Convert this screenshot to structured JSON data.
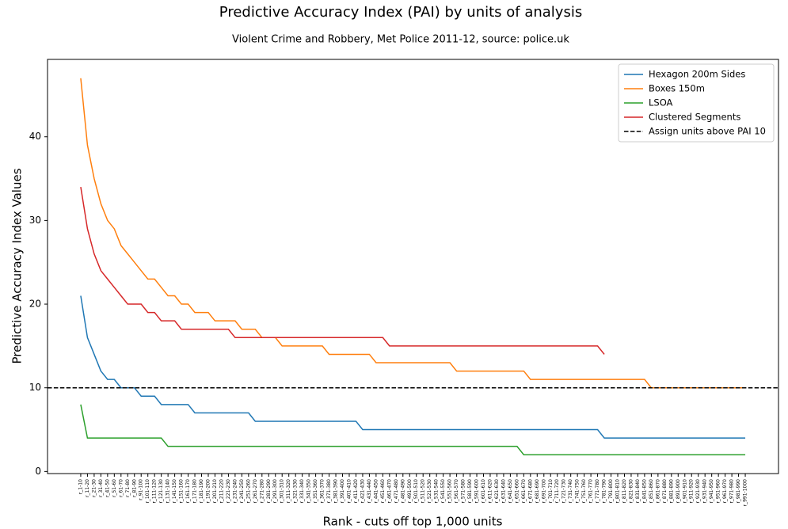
{
  "chart_data": {
    "type": "line",
    "title": "Predictive Accuracy Index (PAI) by units of analysis",
    "subtitle": "Violent Crime and Robbery, Met Police 2011-12, source: police.uk",
    "xlabel": "Rank - cuts off top 1,000 units",
    "ylabel": "Predictive Accuracy Index Values",
    "categories": [
      "r_1-10",
      "r_11-20",
      "r_21-30",
      "r_31-40",
      "r_41-50",
      "r_51-60",
      "r_61-70",
      "r_71-80",
      "r_81-90",
      "r_91-100",
      "r_101-110",
      "r_111-120",
      "r_121-130",
      "r_131-140",
      "r_141-150",
      "r_151-160",
      "r_161-170",
      "r_171-180",
      "r_181-190",
      "r_191-200",
      "r_201-210",
      "r_211-220",
      "r_221-230",
      "r_231-240",
      "r_241-250",
      "r_251-260",
      "r_261-270",
      "r_271-280",
      "r_281-290",
      "r_291-300",
      "r_301-310",
      "r_311-320",
      "r_321-330",
      "r_331-340",
      "r_341-350",
      "r_351-360",
      "r_361-370",
      "r_371-380",
      "r_381-390",
      "r_391-400",
      "r_401-410",
      "r_411-420",
      "r_421-430",
      "r_431-440",
      "r_441-450",
      "r_451-460",
      "r_461-470",
      "r_471-480",
      "r_481-490",
      "r_491-500",
      "r_501-510",
      "r_511-520",
      "r_521-530",
      "r_531-540",
      "r_541-550",
      "r_551-560",
      "r_561-570",
      "r_571-580",
      "r_581-590",
      "r_591-600",
      "r_601-610",
      "r_611-620",
      "r_621-630",
      "r_631-640",
      "r_641-650",
      "r_651-660",
      "r_661-670",
      "r_671-680",
      "r_681-690",
      "r_691-700",
      "r_701-710",
      "r_711-720",
      "r_721-730",
      "r_731-740",
      "r_741-750",
      "r_751-760",
      "r_761-770",
      "r_771-780",
      "r_781-790",
      "r_791-800",
      "r_801-810",
      "r_811-820",
      "r_821-830",
      "r_831-840",
      "r_841-850",
      "r_851-860",
      "r_861-870",
      "r_871-880",
      "r_881-890",
      "r_891-900",
      "r_901-910",
      "r_911-920",
      "r_921-930",
      "r_931-940",
      "r_941-950",
      "r_951-960",
      "r_961-970",
      "r_971-980",
      "r_981-990",
      "r_991-1000"
    ],
    "series": [
      {
        "name": "Hexagon 200m Sides",
        "color": "#1f77b4",
        "values": [
          21,
          16,
          14,
          12,
          11,
          11,
          10,
          10,
          10,
          9,
          9,
          9,
          8,
          8,
          8,
          8,
          8,
          7,
          7,
          7,
          7,
          7,
          7,
          7,
          7,
          7,
          6,
          6,
          6,
          6,
          6,
          6,
          6,
          6,
          6,
          6,
          6,
          6,
          6,
          6,
          6,
          6,
          5,
          5,
          5,
          5,
          5,
          5,
          5,
          5,
          5,
          5,
          5,
          5,
          5,
          5,
          5,
          5,
          5,
          5,
          5,
          5,
          5,
          5,
          5,
          5,
          5,
          5,
          5,
          5,
          5,
          5,
          5,
          5,
          5,
          5,
          5,
          5,
          4,
          4,
          4,
          4,
          4,
          4,
          4,
          4,
          4,
          4,
          4,
          4,
          4,
          4,
          4,
          4,
          4,
          4,
          4,
          4,
          4,
          4
        ]
      },
      {
        "name": "Boxes 150m",
        "color": "#ff7f0e",
        "values": [
          47,
          39,
          35,
          32,
          30,
          29,
          27,
          26,
          25,
          24,
          23,
          23,
          22,
          21,
          21,
          20,
          20,
          19,
          19,
          19,
          18,
          18,
          18,
          18,
          17,
          17,
          17,
          16,
          16,
          16,
          15,
          15,
          15,
          15,
          15,
          15,
          15,
          14,
          14,
          14,
          14,
          14,
          14,
          14,
          13,
          13,
          13,
          13,
          13,
          13,
          13,
          13,
          13,
          13,
          13,
          13,
          12,
          12,
          12,
          12,
          12,
          12,
          12,
          12,
          12,
          12,
          12,
          11,
          11,
          11,
          11,
          11,
          11,
          11,
          11,
          11,
          11,
          11,
          11,
          11,
          11,
          11,
          11,
          11,
          11,
          10,
          10,
          10,
          10,
          10,
          10,
          10,
          10,
          10,
          10,
          10,
          10,
          10,
          10,
          10
        ]
      },
      {
        "name": "LSOA",
        "color": "#2ca02c",
        "values": [
          8,
          4,
          4,
          4,
          4,
          4,
          4,
          4,
          4,
          4,
          4,
          4,
          4,
          3,
          3,
          3,
          3,
          3,
          3,
          3,
          3,
          3,
          3,
          3,
          3,
          3,
          3,
          3,
          3,
          3,
          3,
          3,
          3,
          3,
          3,
          3,
          3,
          3,
          3,
          3,
          3,
          3,
          3,
          3,
          3,
          3,
          3,
          3,
          3,
          3,
          3,
          3,
          3,
          3,
          3,
          3,
          3,
          3,
          3,
          3,
          3,
          3,
          3,
          3,
          3,
          3,
          2,
          2,
          2,
          2,
          2,
          2,
          2,
          2,
          2,
          2,
          2,
          2,
          2,
          2,
          2,
          2,
          2,
          2,
          2,
          2,
          2,
          2,
          2,
          2,
          2,
          2,
          2,
          2,
          2,
          2,
          2,
          2,
          2,
          2
        ]
      },
      {
        "name": "Clustered Segments",
        "color": "#d62728",
        "values": [
          34,
          29,
          26,
          24,
          23,
          22,
          21,
          20,
          20,
          20,
          19,
          19,
          18,
          18,
          18,
          17,
          17,
          17,
          17,
          17,
          17,
          17,
          17,
          16,
          16,
          16,
          16,
          16,
          16,
          16,
          16,
          16,
          16,
          16,
          16,
          16,
          16,
          16,
          16,
          16,
          16,
          16,
          16,
          16,
          16,
          16,
          15,
          15,
          15,
          15,
          15,
          15,
          15,
          15,
          15,
          15,
          15,
          15,
          15,
          15,
          15,
          15,
          15,
          15,
          15,
          15,
          15,
          15,
          15,
          15,
          15,
          15,
          15,
          15,
          15,
          15,
          15,
          15,
          14,
          null,
          null,
          null,
          null,
          null,
          null,
          null,
          null,
          null,
          null,
          null,
          null,
          null,
          null,
          null,
          null,
          null,
          null,
          null,
          null,
          null
        ]
      }
    ],
    "hline": {
      "name": "Assign units above PAI 10",
      "value": 10,
      "color": "#000000"
    },
    "ylim": [
      -0.25,
      49.25
    ],
    "yticks": [
      0,
      10,
      20,
      30,
      40
    ],
    "legend": "upper right",
    "grid": false
  }
}
